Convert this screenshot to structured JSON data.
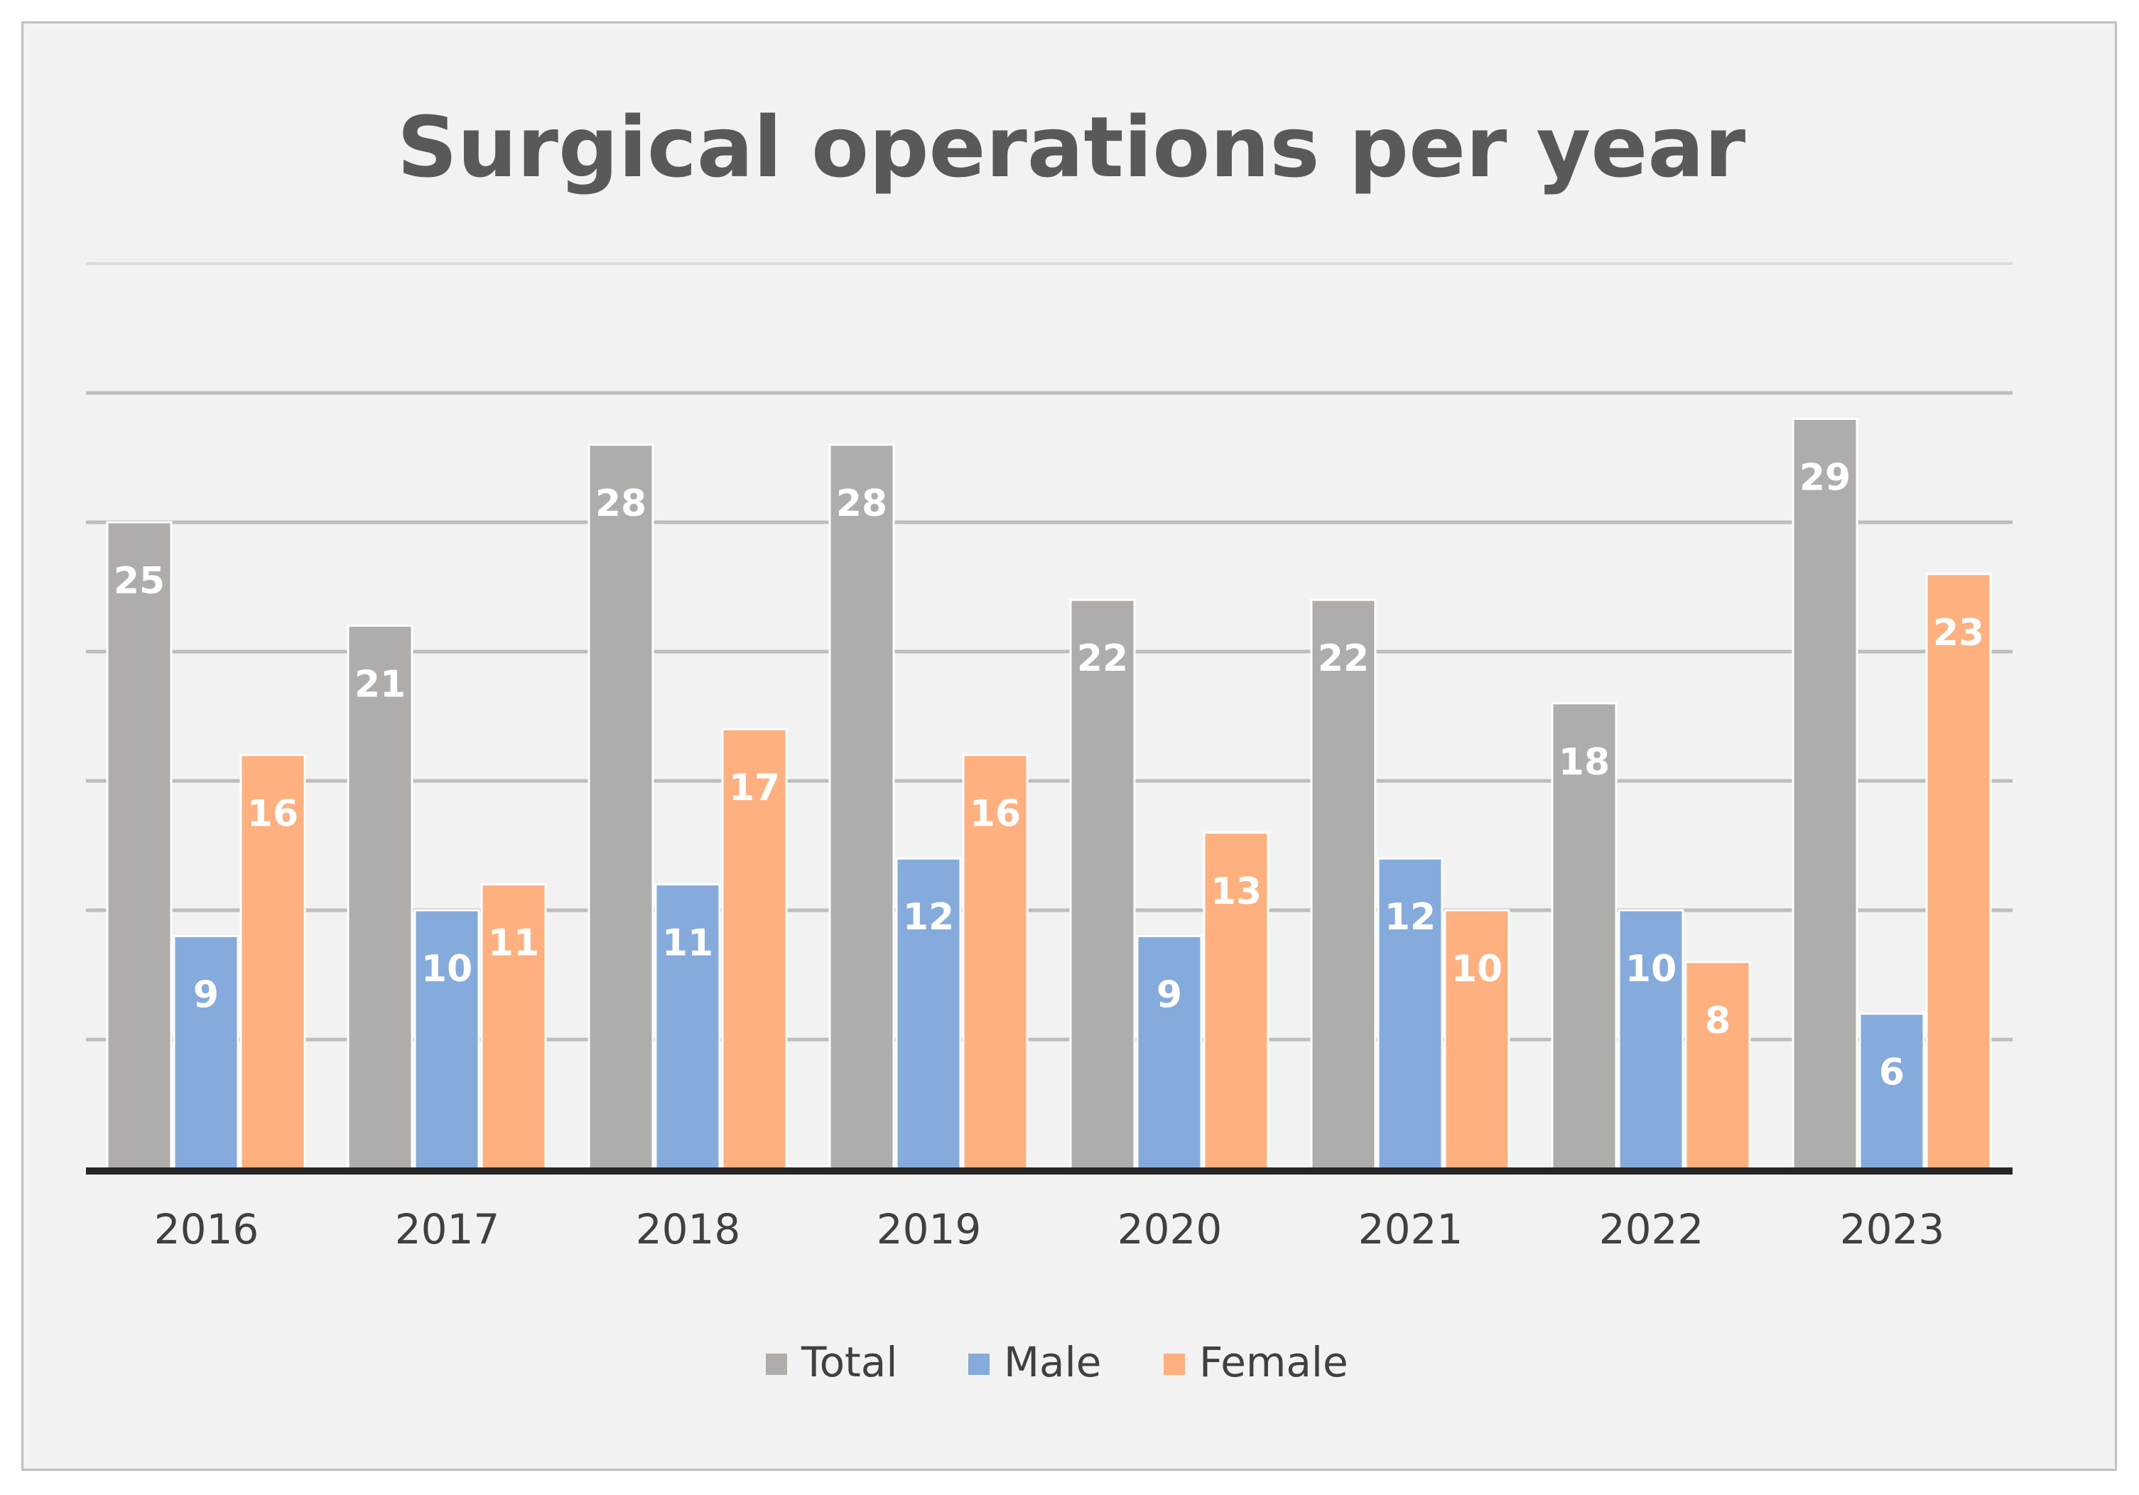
{
  "chart_data": {
    "type": "bar",
    "title": "Surgical operations per year",
    "categories": [
      "2016",
      "2017",
      "2018",
      "2019",
      "2020",
      "2021",
      "2022",
      "2023"
    ],
    "series": [
      {
        "name": "Total",
        "color": "#b0acaa",
        "values": [
          25,
          21,
          28,
          28,
          22,
          22,
          18,
          29
        ]
      },
      {
        "name": "Male",
        "color": "#84abdc",
        "values": [
          9,
          10,
          11,
          12,
          9,
          12,
          10,
          6
        ]
      },
      {
        "name": "Female",
        "color": "#ffb07e",
        "values": [
          16,
          11,
          17,
          16,
          13,
          10,
          8,
          23
        ]
      }
    ],
    "xlabel": "",
    "ylabel": "",
    "ylim": [
      0,
      35
    ],
    "grid": true,
    "gridline_step": 5,
    "y_axis_labels_shown": false,
    "legend_position": "bottom"
  }
}
